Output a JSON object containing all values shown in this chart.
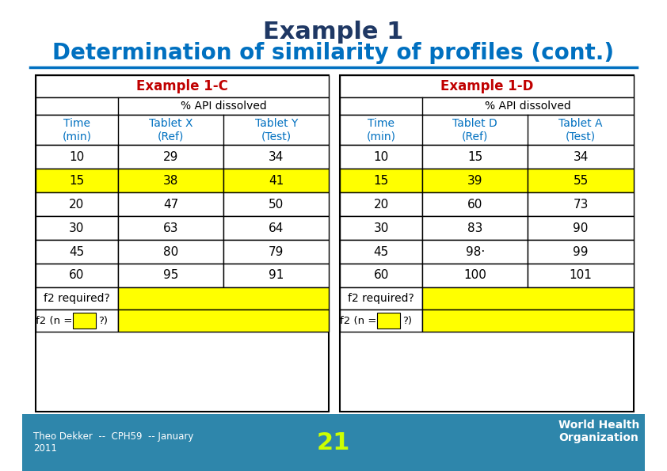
{
  "title_line1": "Example 1",
  "title_line2": "Determination of similarity of profiles (cont.)",
  "title_color": "#1F3864",
  "subtitle_color": "#0070C0",
  "header_color_red": "#C00000",
  "header_bold_color": "#C00000",
  "table_C_header": "Example 1-C",
  "table_D_header": "Example 1-D",
  "api_label": "% API dissolved",
  "col1_label": [
    "Time",
    "(min)"
  ],
  "col2_label_C": [
    "Tablet X",
    "(Ref)"
  ],
  "col3_label_C": [
    "Tablet Y",
    "(Test)"
  ],
  "col2_label_D": [
    "Tablet D",
    "(Ref)"
  ],
  "col3_label_D": [
    "Tablet A",
    "(Test)"
  ],
  "data_C": [
    [
      10,
      29,
      34
    ],
    [
      15,
      38,
      41
    ],
    [
      20,
      47,
      50
    ],
    [
      30,
      63,
      64
    ],
    [
      45,
      80,
      79
    ],
    [
      60,
      95,
      91
    ]
  ],
  "data_D": [
    [
      10,
      15,
      34
    ],
    [
      15,
      39,
      55
    ],
    [
      20,
      60,
      73
    ],
    [
      30,
      83,
      90
    ],
    [
      45,
      "98·",
      99
    ],
    [
      60,
      100,
      101
    ]
  ],
  "yellow_rows_C": [
    1
  ],
  "yellow_rows_D": [
    1
  ],
  "yellow_color": "#FFFF00",
  "white_color": "#FFFFFF",
  "border_color": "#000000",
  "footer_bg": "#2E86AB",
  "footer_text": "Theo Dekker  --  CPH59  -- January\n2011",
  "footer_number": "21",
  "footer_text_color": "#FFFFFF",
  "footer_number_color": "#CCFF00",
  "blue_header_color": "#0070C0"
}
